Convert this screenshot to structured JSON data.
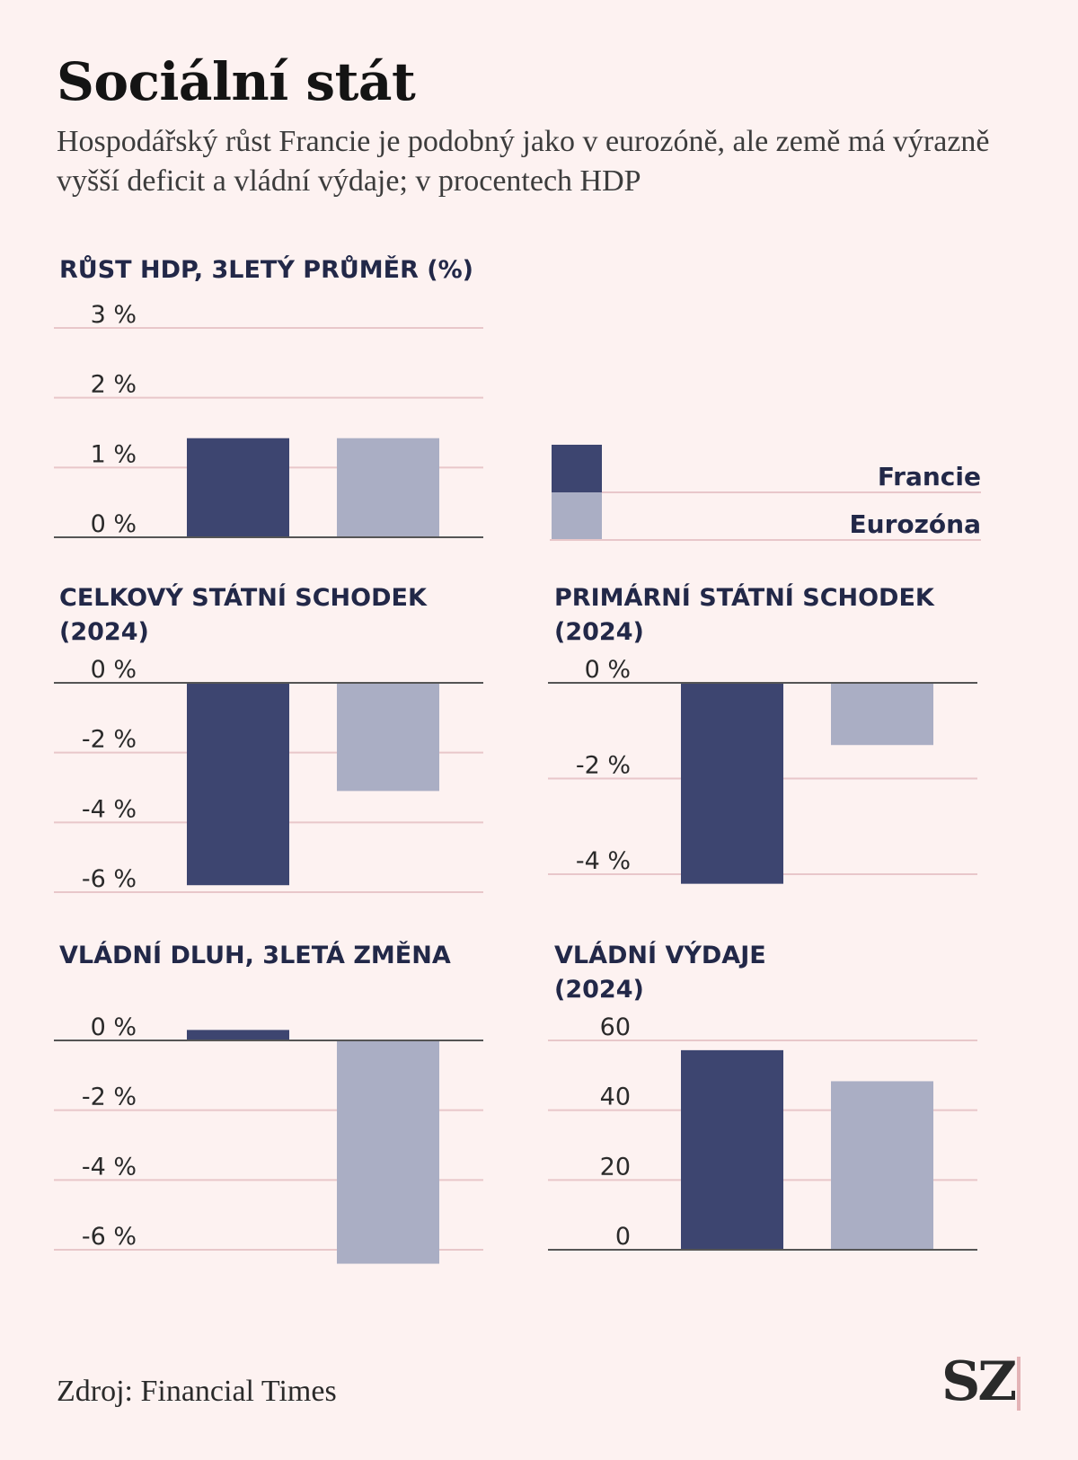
{
  "header": {
    "title": "Sociální stát",
    "subtitle": "Hospodářský růst Francie je podobný jako v eurozóně, ale země má výrazně vyšší deficit a vládní výdaje; v procentech HDP"
  },
  "legend": {
    "items": [
      "Francie",
      "Eurozóna"
    ]
  },
  "colors": {
    "francie": "#3d4570",
    "eurozona": "#aaaec4",
    "grid": "#e8c7ca",
    "axis": "#555555",
    "tick": "#2a2a2a",
    "background": "#fdf2f1"
  },
  "chart_data": [
    {
      "type": "bar",
      "title": "RŮST HDP, 3LETÝ PRŮMĚR (%)",
      "categories": [
        "Francie",
        "Eurozóna"
      ],
      "values": [
        1.42,
        1.42
      ],
      "ylim": [
        0,
        3
      ],
      "yticks": [
        3,
        2,
        1,
        0
      ],
      "ytick_labels": [
        "3 %",
        "2 %",
        "1 %",
        "0 %"
      ],
      "zero_line": true
    },
    {
      "type": "bar",
      "title": "CELKOVÝ STÁTNÍ SCHODEK\n(2024)",
      "categories": [
        "Francie",
        "Eurozóna"
      ],
      "values": [
        -5.8,
        -3.1
      ],
      "ylim": [
        -6,
        0
      ],
      "yticks": [
        0,
        -2,
        -4,
        -6
      ],
      "ytick_labels": [
        "0 %",
        "-2 %",
        "-4 %",
        "-6 %"
      ],
      "zero_line": true
    },
    {
      "type": "bar",
      "title": "PRIMÁRNÍ STÁTNÍ SCHODEK\n(2024)",
      "categories": [
        "Francie",
        "Eurozóna"
      ],
      "values": [
        -4.2,
        -1.3
      ],
      "ylim": [
        -4,
        0
      ],
      "yticks": [
        0,
        -2,
        -4
      ],
      "ytick_labels": [
        "0 %",
        "-2 %",
        "-4 %"
      ],
      "zero_line": true
    },
    {
      "type": "bar",
      "title": "VLÁDNÍ DLUH, 3LETÁ ZMĚNA",
      "categories": [
        "Francie",
        "Eurozóna"
      ],
      "values": [
        0.3,
        -6.4
      ],
      "ylim": [
        -6,
        0
      ],
      "yticks": [
        0,
        -2,
        -4,
        -6
      ],
      "ytick_labels": [
        "0 %",
        "-2 %",
        "-4 %",
        "-6 %"
      ],
      "zero_line": true
    },
    {
      "type": "bar",
      "title": "VLÁDNÍ VÝDAJE\n(2024)",
      "categories": [
        "Francie",
        "Eurozóna"
      ],
      "values": [
        57.2,
        48.3
      ],
      "ylim": [
        0,
        60
      ],
      "yticks": [
        60,
        40,
        20,
        0
      ],
      "ytick_labels": [
        "60",
        "40",
        "20",
        "0"
      ],
      "zero_line": true
    }
  ],
  "footer": {
    "source": "Zdroj: Financial Times",
    "logo": "SZ"
  }
}
